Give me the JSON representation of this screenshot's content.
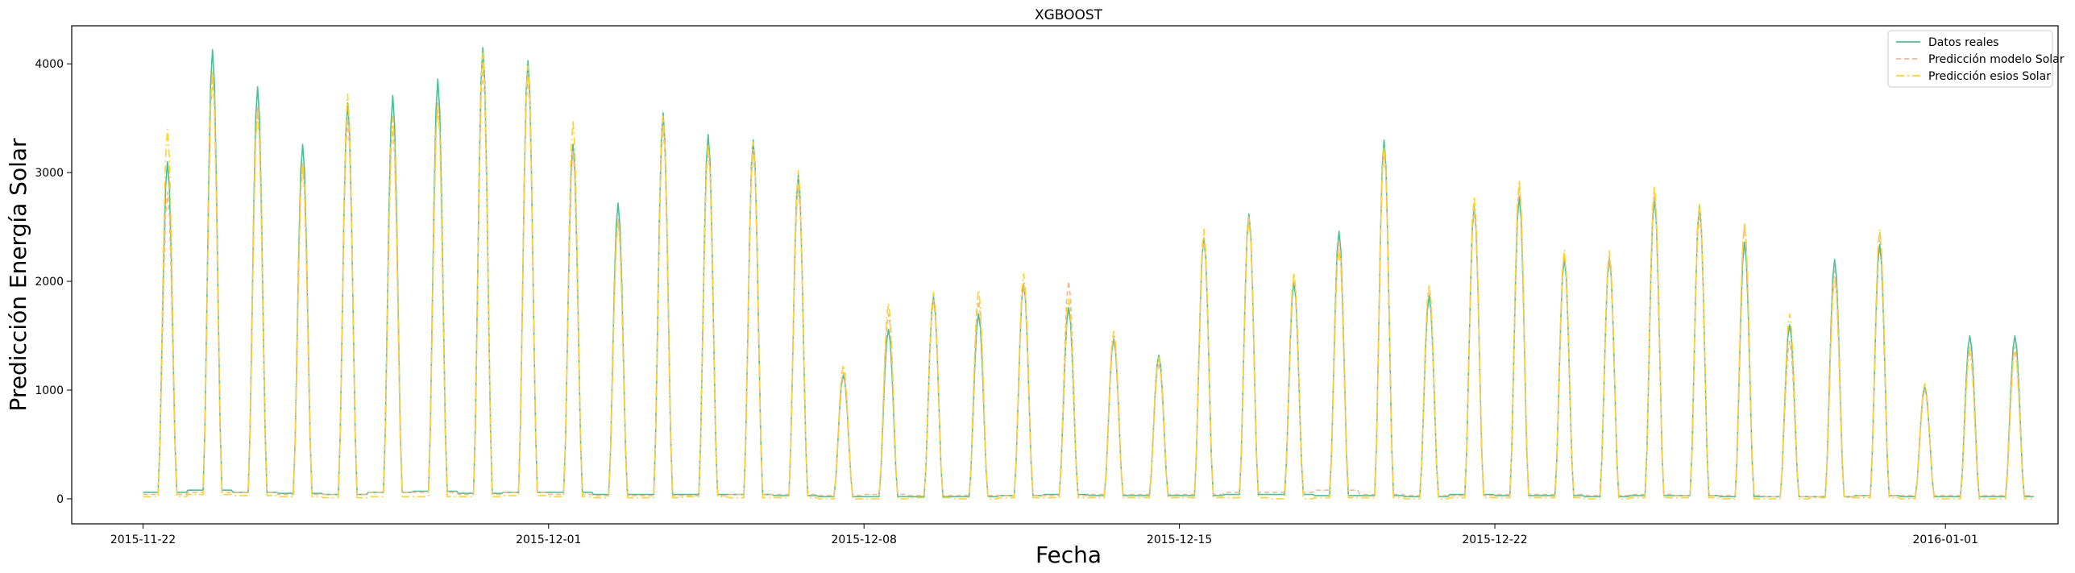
{
  "chart_data": {
    "type": "line",
    "title": "XGBOOST",
    "xlabel": "Fecha",
    "ylabel": "Predicción Energía Solar",
    "x_range": [
      "2015-11-20T10:00",
      "2016-01-03T12:00"
    ],
    "x_data_start": "2015-11-22T00:00",
    "x_data_end": "2016-01-02T23:00",
    "ylim": [
      -230,
      4350
    ],
    "yticks": [
      0,
      1000,
      2000,
      3000,
      4000
    ],
    "xticks": [
      "2015-11-22",
      "2015-12-01",
      "2015-12-08",
      "2015-12-15",
      "2015-12-22",
      "2016-01-01"
    ],
    "grid": false,
    "legend_position": "top-right",
    "series": [
      {
        "name": "Datos reales",
        "color": "#4dbf98",
        "dash": "solid",
        "daily_peaks": [
          3100,
          4130,
          3790,
          3260,
          3640,
          3710,
          3860,
          4150,
          4030,
          3260,
          2720,
          3550,
          3350,
          3300,
          2980,
          1140,
          1560,
          1860,
          1700,
          1980,
          1760,
          1470,
          1320,
          2400,
          2620,
          1990,
          2460,
          3300,
          1870,
          2690,
          2780,
          2210,
          2210,
          2760,
          2700,
          2360,
          1600,
          2200,
          2340,
          1030,
          1500
        ],
        "daily_night": [
          60,
          80,
          60,
          50,
          40,
          60,
          70,
          50,
          60,
          60,
          40,
          40,
          40,
          40,
          30,
          20,
          20,
          20,
          20,
          30,
          40,
          30,
          30,
          30,
          40,
          40,
          30,
          30,
          20,
          40,
          30,
          30,
          20,
          30,
          30,
          20,
          20,
          20,
          30,
          20,
          20
        ]
      },
      {
        "name": "Predicción modelo Solar",
        "color": "#f4b890",
        "dash": "6,4",
        "daily_peaks": [
          2820,
          3880,
          3620,
          3060,
          3500,
          3430,
          3640,
          3980,
          3900,
          3200,
          2580,
          3420,
          3220,
          3200,
          2860,
          1160,
          1700,
          1820,
          1820,
          1980,
          2000,
          1500,
          1250,
          2400,
          2600,
          2050,
          2380,
          3210,
          1960,
          2680,
          2880,
          2260,
          2230,
          2820,
          2620,
          2500,
          1450,
          2100,
          2440,
          1000,
          1400
        ],
        "daily_night": [
          40,
          60,
          60,
          40,
          40,
          60,
          60,
          40,
          60,
          40,
          30,
          30,
          30,
          40,
          40,
          30,
          40,
          30,
          30,
          30,
          30,
          40,
          40,
          40,
          60,
          60,
          80,
          40,
          30,
          30,
          40,
          40,
          30,
          40,
          30,
          30,
          20,
          20,
          30,
          30,
          30
        ]
      },
      {
        "name": "Predicción esios Solar",
        "color": "#ffd42a",
        "dash": "10,4,2,4",
        "daily_peaks": [
          3400,
          3940,
          3560,
          3100,
          3720,
          3520,
          3620,
          4100,
          3980,
          3480,
          2540,
          3520,
          3260,
          3280,
          3020,
          1230,
          1800,
          1900,
          1920,
          2070,
          1840,
          1540,
          1300,
          2480,
          2560,
          2080,
          2300,
          3240,
          1960,
          2780,
          2930,
          2290,
          2280,
          2880,
          2720,
          2540,
          1700,
          2020,
          2480,
          1060,
          1350
        ],
        "daily_night": [
          20,
          40,
          30,
          20,
          10,
          20,
          20,
          20,
          30,
          20,
          10,
          10,
          20,
          10,
          10,
          0,
          0,
          10,
          0,
          10,
          10,
          10,
          10,
          10,
          10,
          0,
          10,
          10,
          0,
          10,
          10,
          10,
          0,
          10,
          10,
          0,
          0,
          10,
          10,
          0,
          0
        ]
      }
    ]
  }
}
